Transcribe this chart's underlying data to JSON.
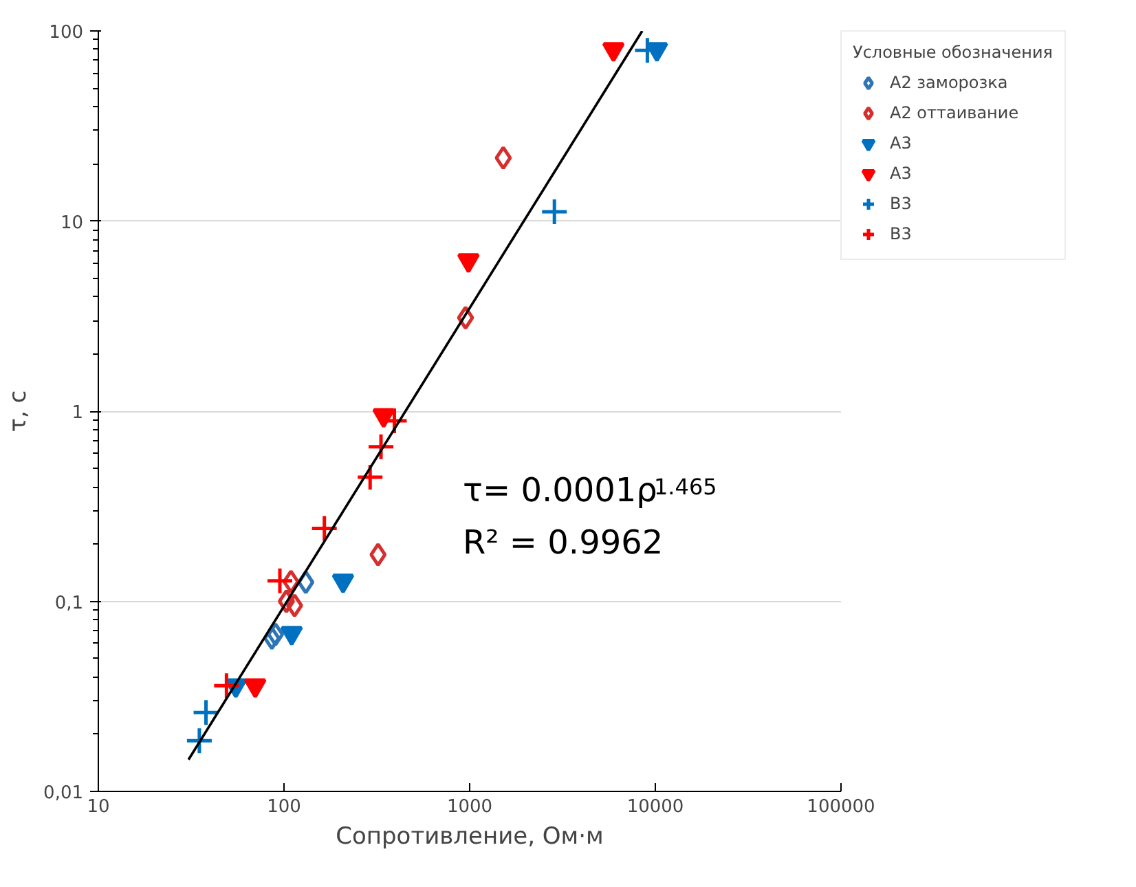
{
  "chart_data": {
    "type": "scatter",
    "xlabel": "Сопротивление, Ом·м",
    "ylabel": "τ, с",
    "legend_title": "Условные обозначения",
    "legend": "right",
    "grid": "y",
    "log": "xy",
    "xlim": [
      10,
      100000
    ],
    "xticks": [
      10,
      100,
      1000,
      10000,
      100000
    ],
    "ylim": [
      0.01,
      100
    ],
    "yticks": [
      {
        "value": 0.01,
        "label": "0,01"
      },
      {
        "value": 0.1,
        "label": "0,1"
      },
      1,
      10,
      100
    ],
    "series": [
      {
        "name": "А2 заморозка",
        "color": "#2e75b6",
        "marker": "diamond",
        "x": [
          86,
          90,
          131
        ],
        "values": [
          0.064,
          0.067,
          0.126
        ]
      },
      {
        "name": "А2 оттаивание",
        "color": "#d62d2d",
        "marker": "diamond",
        "x": [
          109,
          103,
          114,
          321,
          950,
          1517
        ],
        "values": [
          0.127,
          0.1,
          0.095,
          0.176,
          3.1,
          21.5
        ]
      },
      {
        "name": "А3",
        "color": "#0070c0",
        "marker": "triangle",
        "x": [
          55,
          110,
          208,
          10200
        ],
        "values": [
          0.036,
          0.068,
          0.128,
          80
        ]
      },
      {
        "name": "А3",
        "color": "#ff0000",
        "marker": "triangle",
        "x": [
          70,
          344,
          985,
          5950
        ],
        "values": [
          0.036,
          0.95,
          6.2,
          80
        ]
      },
      {
        "name": "В3",
        "color": "#0070c0",
        "marker": "cross",
        "x": [
          35,
          38,
          2860,
          9060
        ],
        "values": [
          0.0185,
          0.026,
          11.2,
          79
        ]
      },
      {
        "name": "В3",
        "color": "#ff0000",
        "marker": "cross",
        "x": [
          49,
          95,
          165,
          291,
          333,
          393
        ],
        "values": [
          0.036,
          0.128,
          0.242,
          0.45,
          0.65,
          0.89
        ]
      },
      {
        "type": "line",
        "color": "#000000",
        "x": [
          30.6,
          8500
        ],
        "values": [
          0.0147,
          100
        ]
      }
    ],
    "annotations": [
      "τ= 0.0001ρ$^{1.465}$",
      "R² = 0.9962"
    ]
  }
}
